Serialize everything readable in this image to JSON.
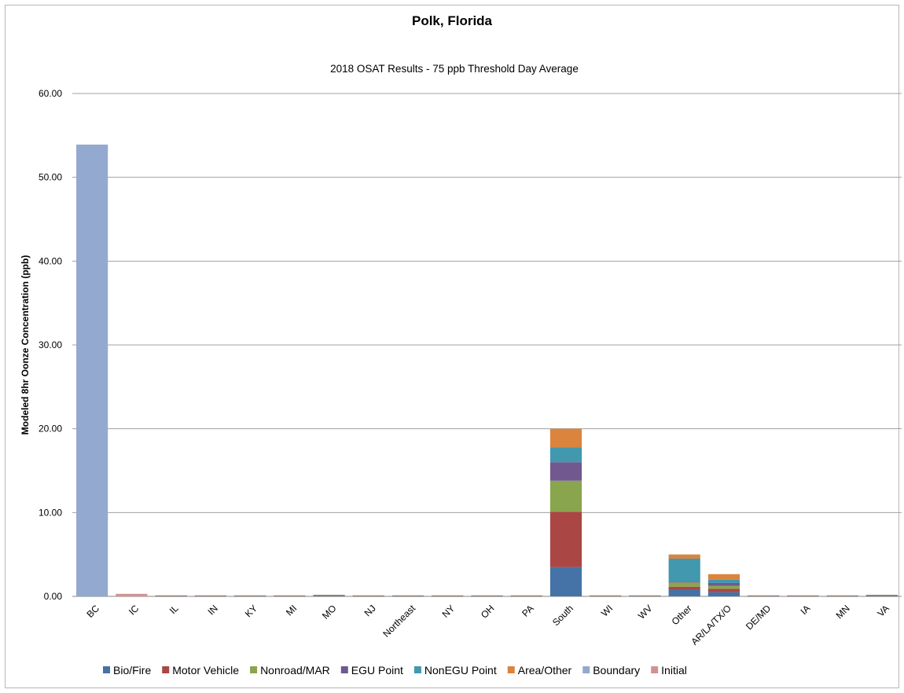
{
  "chart_data": {
    "type": "bar",
    "stacked": true,
    "title": "Polk, Florida",
    "subtitle": "2018 OSAT Results - 75 ppb Threshold Day Average",
    "ylabel": "Modeled 8hr Oonze Concentration (ppb)",
    "xlabel": "",
    "ylim": [
      0,
      60
    ],
    "yticks": [
      "0.00",
      "10.00",
      "20.00",
      "30.00",
      "40.00",
      "50.00",
      "60.00"
    ],
    "grid": true,
    "legend_position": "bottom",
    "categories": [
      "BC",
      "IC",
      "IL",
      "IN",
      "KY",
      "MI",
      "MO",
      "NJ",
      "Northeast",
      "NY",
      "OH",
      "PA",
      "South",
      "WI",
      "WV",
      "Other",
      "AR/LA/TX/O",
      "DE/MD",
      "IA",
      "MN",
      "VA"
    ],
    "series": [
      {
        "name": "Bio/Fire",
        "color": "#4572A7",
        "values": [
          0,
          0,
          0.02,
          0.02,
          0.02,
          0.02,
          0.03,
          0.02,
          0.02,
          0.02,
          0.02,
          0.02,
          3.5,
          0.02,
          0.02,
          0.8,
          0.5,
          0.02,
          0.02,
          0.02,
          0.03
        ]
      },
      {
        "name": "Motor Vehicle",
        "color": "#AA4643",
        "values": [
          0,
          0,
          0.02,
          0.02,
          0.02,
          0.02,
          0.03,
          0.02,
          0.02,
          0.02,
          0.02,
          0.02,
          6.6,
          0.02,
          0.02,
          0.35,
          0.4,
          0.02,
          0.02,
          0.02,
          0.03
        ]
      },
      {
        "name": "Nonroad/MAR",
        "color": "#89A54E",
        "values": [
          0,
          0,
          0.02,
          0.02,
          0.02,
          0.02,
          0.03,
          0.02,
          0.02,
          0.02,
          0.02,
          0.02,
          3.7,
          0.02,
          0.02,
          0.5,
          0.35,
          0.02,
          0.02,
          0.02,
          0.03
        ]
      },
      {
        "name": "EGU Point",
        "color": "#71588F",
        "values": [
          0,
          0,
          0.02,
          0.02,
          0.02,
          0.02,
          0.03,
          0.02,
          0.02,
          0.02,
          0.02,
          0.02,
          2.2,
          0.02,
          0.02,
          0.1,
          0.35,
          0.02,
          0.02,
          0.02,
          0.03
        ]
      },
      {
        "name": "NonEGU Point",
        "color": "#4198AF",
        "values": [
          0,
          0,
          0.02,
          0.02,
          0.02,
          0.02,
          0.03,
          0.02,
          0.02,
          0.02,
          0.02,
          0.02,
          1.8,
          0.02,
          0.02,
          2.75,
          0.4,
          0.02,
          0.02,
          0.02,
          0.03
        ]
      },
      {
        "name": "Area/Other",
        "color": "#DB843D",
        "values": [
          0,
          0,
          0.02,
          0.02,
          0.02,
          0.02,
          0.04,
          0.02,
          0.02,
          0.02,
          0.02,
          0.02,
          2.2,
          0.02,
          0.02,
          0.5,
          0.65,
          0.02,
          0.02,
          0.02,
          0.04
        ]
      },
      {
        "name": "Boundary",
        "color": "#93A9CF",
        "values": [
          53.9,
          0,
          0,
          0,
          0,
          0,
          0,
          0,
          0,
          0,
          0,
          0,
          0,
          0,
          0,
          0,
          0,
          0,
          0,
          0,
          0
        ]
      },
      {
        "name": "Initial",
        "color": "#D19392",
        "values": [
          0,
          0.3,
          0,
          0,
          0,
          0,
          0,
          0,
          0,
          0,
          0,
          0,
          0,
          0,
          0,
          0,
          0,
          0,
          0,
          0,
          0
        ]
      }
    ]
  }
}
